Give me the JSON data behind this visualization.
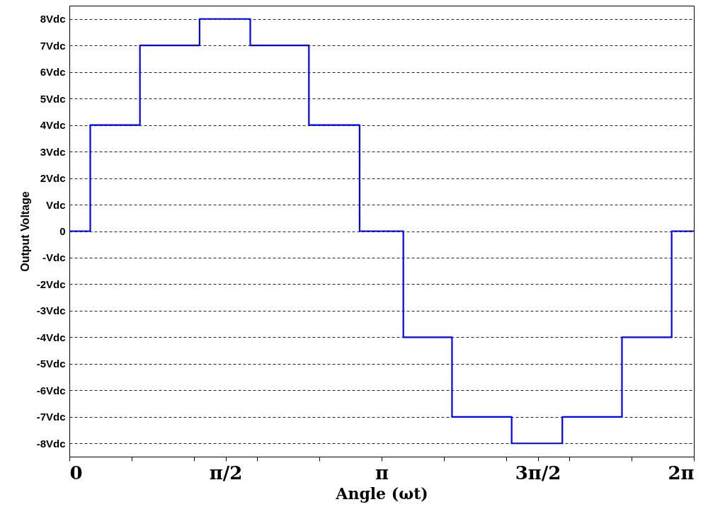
{
  "chart_data": {
    "type": "step",
    "xlabel": "Angle (ωt)",
    "ylabel": "Output Voltage",
    "x": [
      0,
      0.21,
      0.71,
      1.31,
      1.82,
      2.41,
      2.92,
      3.36,
      3.85,
      4.45,
      4.96,
      5.56,
      6.06,
      6.2832
    ],
    "series": [
      {
        "color": "#0000ff",
        "values": [
          0,
          4,
          7,
          8,
          7,
          4,
          0,
          -4,
          -7,
          -8,
          -7,
          -4,
          0,
          0
        ]
      }
    ],
    "xlim": [
      0,
      6.2832
    ],
    "xticks": [
      0,
      {
        "value": 0.6283,
        "label": null
      },
      {
        "value": 1.2566,
        "label": null
      },
      {
        "value": 1.5708,
        "label": "π/2"
      },
      {
        "value": 1.885,
        "label": null
      },
      {
        "value": 2.5133,
        "label": null
      },
      {
        "value": 3.1416,
        "label": "π"
      },
      {
        "value": 3.7699,
        "label": null
      },
      {
        "value": 4.3982,
        "label": null
      },
      {
        "value": 4.7124,
        "label": "3π/2"
      },
      {
        "value": 5.0265,
        "label": null
      },
      {
        "value": 5.6549,
        "label": null
      },
      {
        "value": 6.2832,
        "label": "2π"
      }
    ],
    "ylim": [
      -8.5,
      8.5
    ],
    "yticks": [
      {
        "value": -8,
        "label": "-8Vdc"
      },
      {
        "value": -7,
        "label": "-7Vdc"
      },
      {
        "value": -6,
        "label": "-6Vdc"
      },
      {
        "value": -5,
        "label": "-5Vdc"
      },
      {
        "value": -4,
        "label": "-4Vdc"
      },
      {
        "value": -3,
        "label": "-3Vdc"
      },
      {
        "value": -2,
        "label": "-2Vdc"
      },
      {
        "value": -1,
        "label": "-Vdc"
      },
      0,
      {
        "value": 1,
        "label": "Vdc"
      },
      {
        "value": 2,
        "label": "2Vdc"
      },
      {
        "value": 3,
        "label": "3Vdc"
      },
      {
        "value": 4,
        "label": "4Vdc"
      },
      {
        "value": 5,
        "label": "5Vdc"
      },
      {
        "value": 6,
        "label": "6Vdc"
      },
      {
        "value": 7,
        "label": "7Vdc"
      },
      {
        "value": 8,
        "label": "8Vdc"
      }
    ],
    "grid": "y",
    "line_style": "solid",
    "marker": "none"
  }
}
